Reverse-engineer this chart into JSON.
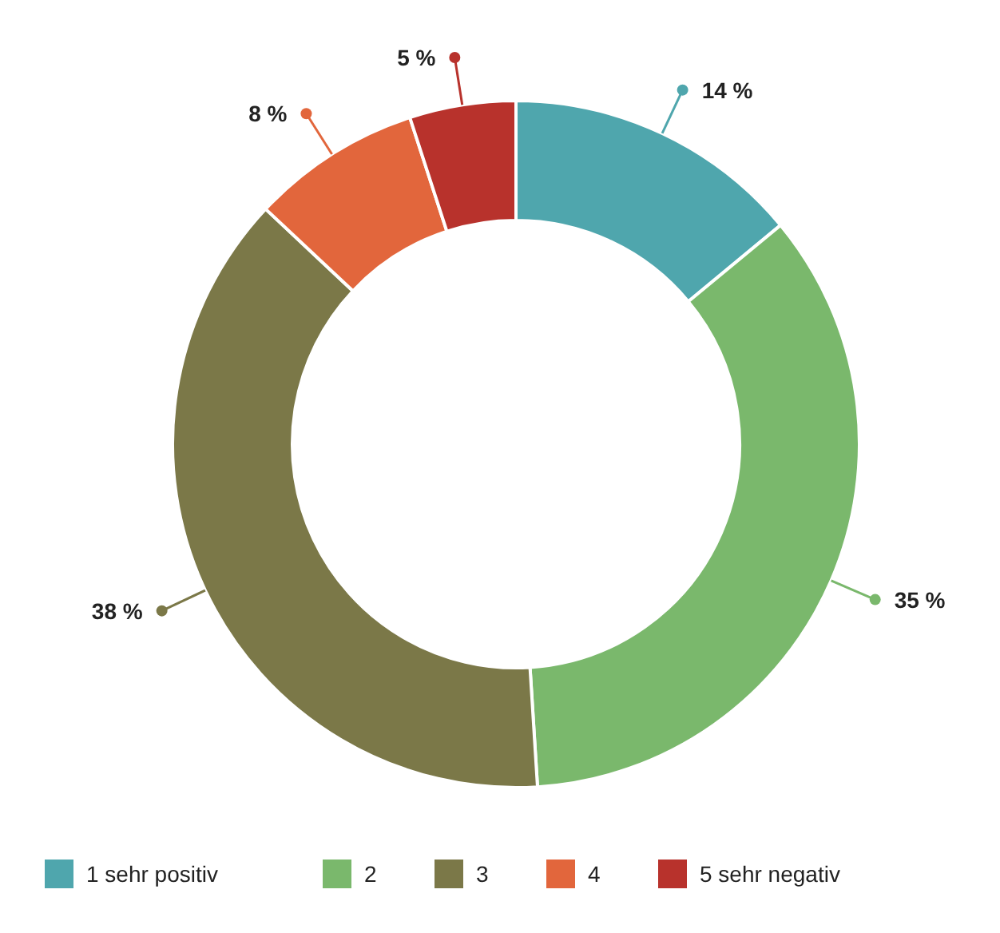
{
  "chart_data": {
    "type": "donut",
    "categories": [
      "1 sehr positiv",
      "2",
      "3",
      "4",
      "5 sehr negativ"
    ],
    "values": [
      14,
      35,
      38,
      8,
      5
    ],
    "colors": [
      "#4fa6ad",
      "#7ab86c",
      "#7b7848",
      "#e2663c",
      "#b8322c"
    ],
    "value_labels": [
      "14 %",
      "35 %",
      "38 %",
      "8 %",
      "5 %"
    ],
    "legend": "bottom"
  }
}
